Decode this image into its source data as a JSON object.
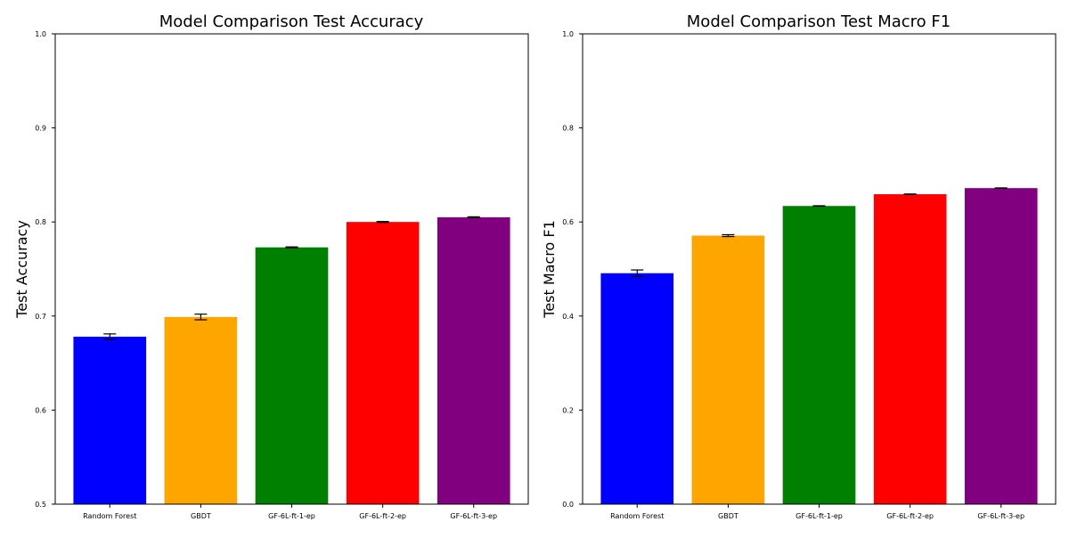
{
  "chart_data": [
    {
      "type": "bar",
      "title": "Model Comparison Test Accuracy",
      "xlabel": "",
      "ylabel": "Test Accuracy",
      "categories": [
        "Random Forest",
        "GBDT",
        "GF-6L-ft-1-ep",
        "GF-6L-ft-2-ep",
        "GF-6L-ft-3-ep"
      ],
      "values": [
        0.678,
        0.699,
        0.773,
        0.8,
        0.805
      ],
      "errors": [
        0.003,
        0.003,
        0.0005,
        0.0005,
        0.0005
      ],
      "colors": [
        "#0000ff",
        "#ffa500",
        "#008000",
        "#ff0000",
        "#800080"
      ],
      "ylim": [
        0.5,
        1.0
      ],
      "yticks": [
        0.5,
        0.6,
        0.7,
        0.8,
        0.9,
        1.0
      ],
      "ytick_labels": [
        "0.5",
        "0.6",
        "0.7",
        "0.8",
        "0.9",
        "1.0"
      ],
      "grid": false
    },
    {
      "type": "bar",
      "title": "Model Comparison Test Macro F1",
      "xlabel": "",
      "ylabel": "Test Macro F1",
      "categories": [
        "Random Forest",
        "GBDT",
        "GF-6L-ft-1-ep",
        "GF-6L-ft-2-ep",
        "GF-6L-ft-3-ep"
      ],
      "values": [
        0.491,
        0.571,
        0.634,
        0.659,
        0.672
      ],
      "errors": [
        0.007,
        0.002,
        0.0005,
        0.0005,
        0.0005
      ],
      "colors": [
        "#0000ff",
        "#ffa500",
        "#008000",
        "#ff0000",
        "#800080"
      ],
      "ylim": [
        0.0,
        1.0
      ],
      "yticks": [
        0.0,
        0.2,
        0.4,
        0.6,
        0.8,
        1.0
      ],
      "ytick_labels": [
        "0.0",
        "0.2",
        "0.4",
        "0.6",
        "0.8",
        "1.0"
      ],
      "grid": false
    }
  ]
}
